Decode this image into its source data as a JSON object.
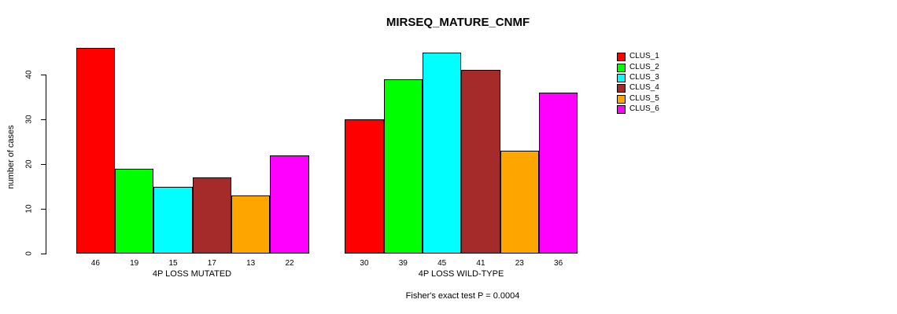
{
  "title": "MIRSEQ_MATURE_CNMF",
  "footer": "Fisher's exact test P = 0.0004",
  "chart_data": {
    "type": "bar",
    "title": "MIRSEQ_MATURE_CNMF",
    "ylabel": "number of cases",
    "xlabel": "",
    "xlabel_groups": [
      "4P LOSS MUTATED",
      "4P LOSS WILD-TYPE"
    ],
    "series": [
      {
        "name": "CLUS_1",
        "color": "#FF0000",
        "values": [
          46,
          30
        ]
      },
      {
        "name": "CLUS_2",
        "color": "#00FF00",
        "values": [
          19,
          39
        ]
      },
      {
        "name": "CLUS_3",
        "color": "#00FFFF",
        "values": [
          15,
          45
        ]
      },
      {
        "name": "CLUS_4",
        "color": "#A52A2A",
        "values": [
          17,
          41
        ]
      },
      {
        "name": "CLUS_5",
        "color": "#FFA500",
        "values": [
          13,
          23
        ]
      },
      {
        "name": "CLUS_6",
        "color": "#FF00FF",
        "values": [
          22,
          36
        ]
      }
    ],
    "bar_value_labels": [
      [
        46,
        19,
        15,
        17,
        13,
        22
      ],
      [
        30,
        39,
        45,
        41,
        23,
        36
      ]
    ],
    "yticks": [
      0,
      10,
      20,
      30,
      40
    ],
    "ylim": [
      0,
      46
    ],
    "grid": false,
    "legend_position": "right",
    "legend_labels": [
      "CLUS_1",
      "CLUS_2",
      "CLUS_3",
      "CLUS_4",
      "CLUS_5",
      "CLUS_6"
    ],
    "annotation": "Fisher's exact test P = 0.0004"
  }
}
